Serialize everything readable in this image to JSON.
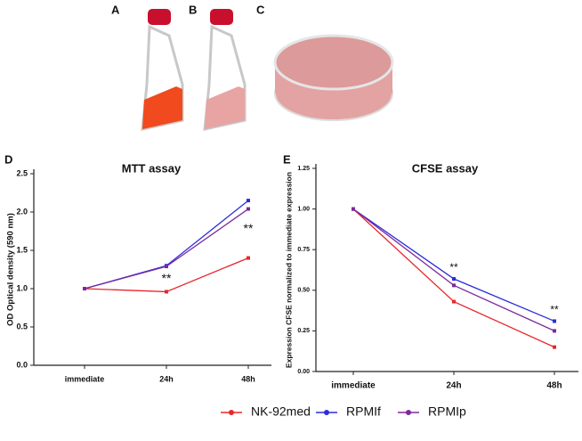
{
  "panels": [
    "A",
    "B",
    "C"
  ],
  "chart_data": [
    {
      "type": "line",
      "panel": "D",
      "title": "MTT assay",
      "y_label": "OD Optical density (590 nm)",
      "categories": [
        "immediate",
        "24h",
        "48h"
      ],
      "series": [
        {
          "name": "NK-92med",
          "color": "#e8262b",
          "values": [
            1.0,
            0.96,
            1.4
          ]
        },
        {
          "name": "RPMIf",
          "color": "#2b2bdc",
          "values": [
            1.0,
            1.3,
            2.15
          ]
        },
        {
          "name": "RPMIp",
          "color": "#7b2a9c",
          "values": [
            1.0,
            1.29,
            2.04
          ]
        }
      ],
      "ylim": [
        0,
        2.5
      ],
      "yticks": [
        {
          "value": 0,
          "label": "0.0"
        },
        0.5,
        {
          "value": 1,
          "label": "1.0"
        },
        1.5,
        {
          "value": 2,
          "label": "2.0"
        },
        2.5
      ],
      "annotations": [
        {
          "text": "**",
          "x": "24h"
        },
        {
          "text": "**",
          "x": "48h"
        }
      ]
    },
    {
      "type": "line",
      "panel": "E",
      "title": "CFSE assay",
      "y_label": "Expression CFSE normalized to immediate expression",
      "categories": [
        "immediate",
        "24h",
        "48h"
      ],
      "series": [
        {
          "name": "NK-92med",
          "color": "#e8262b",
          "values": [
            1.0,
            0.43,
            0.15
          ]
        },
        {
          "name": "RPMIf",
          "color": "#2b2bdc",
          "values": [
            1.0,
            0.57,
            0.31
          ]
        },
        {
          "name": "RPMIp",
          "color": "#7b2a9c",
          "values": [
            1.0,
            0.53,
            0.25
          ]
        }
      ],
      "ylim": [
        0,
        1.25
      ],
      "yticks": [
        {
          "value": 0,
          "label": "0.00"
        },
        0.25,
        {
          "value": 0.5,
          "label": "0.50"
        },
        0.75,
        {
          "value": 1,
          "label": "1.00"
        },
        1.25
      ],
      "annotations": [
        {
          "text": "**",
          "x": "24h"
        },
        {
          "text": "**",
          "x": "48h"
        }
      ]
    }
  ]
}
